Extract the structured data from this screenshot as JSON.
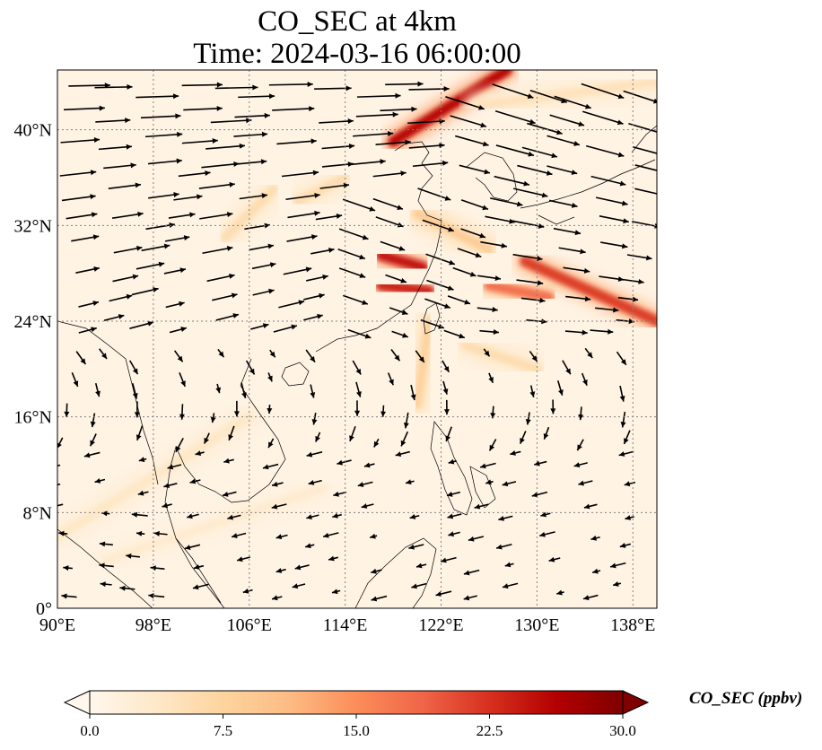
{
  "title": {
    "line1": "CO_SEC at 4km",
    "line2": "Time: 2024-03-16 06:00:00"
  },
  "map": {
    "projection": "PlateCarree",
    "lon_range": [
      90,
      140
    ],
    "lat_range": [
      0,
      45
    ],
    "lon_ticks": [
      {
        "value": 90,
        "label": "90°E"
      },
      {
        "value": 98,
        "label": "98°E"
      },
      {
        "value": 106,
        "label": "106°E"
      },
      {
        "value": 114,
        "label": "114°E"
      },
      {
        "value": 122,
        "label": "122°E"
      },
      {
        "value": 130,
        "label": "130°E"
      },
      {
        "value": 138,
        "label": "138°E"
      }
    ],
    "lat_ticks": [
      {
        "value": 0,
        "label": "0°"
      },
      {
        "value": 8,
        "label": "8°N"
      },
      {
        "value": 16,
        "label": "16°N"
      },
      {
        "value": 24,
        "label": "24°N"
      },
      {
        "value": 32,
        "label": "32°N"
      },
      {
        "value": 40,
        "label": "40°N"
      }
    ],
    "gridlines": true,
    "gridline_color": "#808080"
  },
  "colorbar": {
    "label": "CO_SEC (ppbv)",
    "min": 0,
    "max": 30,
    "extend": "both",
    "ticks": [
      "0.0",
      "7.5",
      "15.0",
      "22.5",
      "30.0"
    ],
    "colormap": "OrRd",
    "colors": [
      "#fff7ec",
      "#fee8c8",
      "#fdd49e",
      "#fdbb84",
      "#fc8d59",
      "#ef6548",
      "#d7301f",
      "#b30000",
      "#7f0000"
    ]
  },
  "plumes": [
    {
      "lon1": 118.0,
      "lat1": 39.0,
      "lon2": 127.5,
      "lat2": 45.0,
      "value": 26
    },
    {
      "lon1": 117.0,
      "lat1": 29.5,
      "lon2": 120.5,
      "lat2": 28.5,
      "value": 25
    },
    {
      "lon1": 117.0,
      "lat1": 27.0,
      "lon2": 121.0,
      "lat2": 26.5,
      "value": 24
    },
    {
      "lon1": 129.0,
      "lat1": 29.0,
      "lon2": 140.0,
      "lat2": 24.0,
      "value": 22
    },
    {
      "lon1": 126.0,
      "lat1": 27.0,
      "lon2": 131.0,
      "lat2": 26.0,
      "value": 18
    },
    {
      "lon1": 120.0,
      "lat1": 33.0,
      "lon2": 126.0,
      "lat2": 30.0,
      "value": 9
    },
    {
      "lon1": 121.0,
      "lat1": 24.0,
      "lon2": 120.0,
      "lat2": 17.0,
      "value": 8
    },
    {
      "lon1": 124.0,
      "lat1": 22.0,
      "lon2": 130.0,
      "lat2": 20.0,
      "value": 6
    },
    {
      "lon1": 104.0,
      "lat1": 31.0,
      "lon2": 108.0,
      "lat2": 35.0,
      "value": 6
    },
    {
      "lon1": 110.0,
      "lat1": 34.0,
      "lon2": 114.0,
      "lat2": 36.0,
      "value": 6
    },
    {
      "lon1": 90.0,
      "lat1": 6.0,
      "lon2": 106.0,
      "lat2": 16.0,
      "value": 4
    },
    {
      "lon1": 94.0,
      "lat1": 4.0,
      "lon2": 112.0,
      "lat2": 10.0,
      "value": 3
    },
    {
      "lon1": 125.0,
      "lat1": 42.0,
      "lon2": 140.0,
      "lat2": 44.0,
      "value": 5
    }
  ],
  "wind_vectors": {
    "description": "westerly flow north of ~20N, north-easterly trades in the south",
    "arrows_visible": true
  }
}
